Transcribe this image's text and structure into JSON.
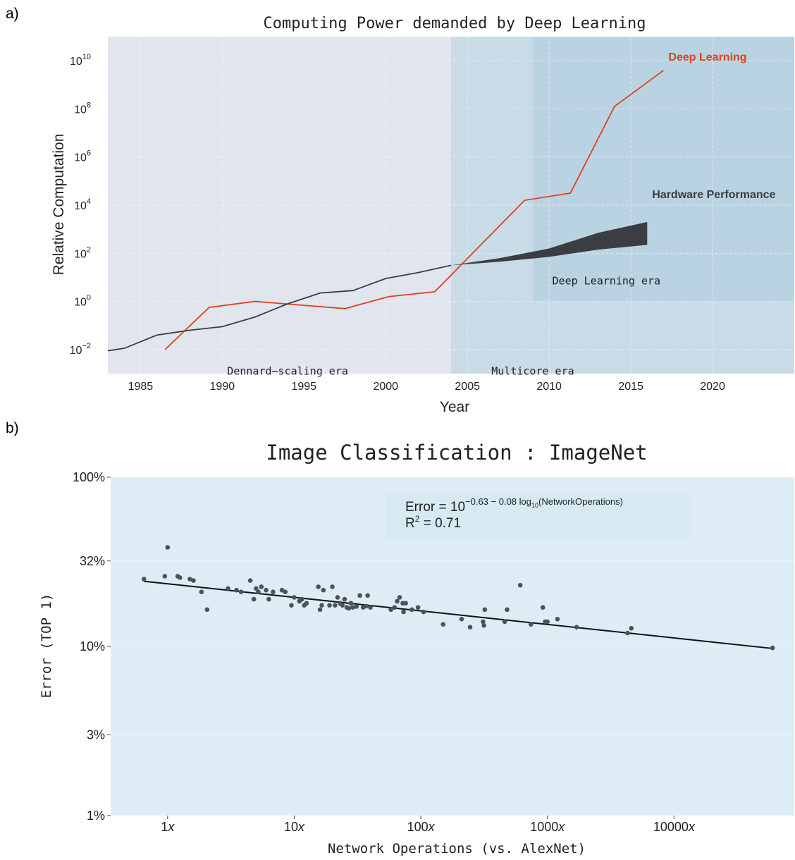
{
  "panel_labels": [
    "a)",
    "b)"
  ],
  "chart_data": [
    {
      "type": "line",
      "title": "Computing Power demanded by Deep Learning",
      "xlabel": "Year",
      "ylabel": "Relative Computation",
      "xlim": [
        1983,
        2025
      ],
      "ylim_log10": [
        -3,
        11
      ],
      "y_scale": "log",
      "x_ticks": [
        1985,
        1990,
        1995,
        2000,
        2005,
        2010,
        2015,
        2020
      ],
      "y_ticks": [
        {
          "exp": -2,
          "label": "10",
          "sup": "−2"
        },
        {
          "exp": 0,
          "label": "10",
          "sup": "0"
        },
        {
          "exp": 2,
          "label": "10",
          "sup": "2"
        },
        {
          "exp": 4,
          "label": "10",
          "sup": "4"
        },
        {
          "exp": 6,
          "label": "10",
          "sup": "6"
        },
        {
          "exp": 8,
          "label": "10",
          "sup": "8"
        },
        {
          "exp": 10,
          "label": "10",
          "sup": "10"
        }
      ],
      "grid": true,
      "regions": [
        {
          "label": "Dennard−scaling era",
          "x": [
            1983,
            2004
          ],
          "y_log10": [
            -3,
            11
          ],
          "color": "#e1e5ee"
        },
        {
          "label": "Multicore era",
          "x": [
            2004,
            2025
          ],
          "y_log10": [
            -3,
            11
          ],
          "color": "#c9dbe7"
        },
        {
          "label": "Deep Learning era",
          "x": [
            2009,
            2025
          ],
          "y_log10": [
            0,
            11
          ],
          "color": "#b9d3e2"
        }
      ],
      "series": [
        {
          "name": "Deep Learning",
          "color": "#e2401d",
          "x": [
            1986.5,
            1989.2,
            1992.0,
            1997.5,
            2000.2,
            2003.0,
            2008.5,
            2011.3,
            2014.0,
            2017.0
          ],
          "y_log10": [
            -2.0,
            -0.25,
            0.0,
            -0.3,
            0.2,
            0.4,
            4.2,
            4.5,
            8.1,
            9.6
          ]
        },
        {
          "name": "Hardware Performance",
          "color": "#3a3d42",
          "x": [
            1983,
            1984,
            1986,
            1988,
            1990,
            1992,
            1994,
            1996,
            1998,
            2000,
            2002,
            2004
          ],
          "y_log10": [
            -2.05,
            -1.95,
            -1.4,
            -1.2,
            -1.05,
            -0.65,
            -0.1,
            0.35,
            0.45,
            0.95,
            1.2,
            1.5
          ]
        }
      ],
      "bands": [
        {
          "name": "Hardware Performance",
          "color": "#3a3d42",
          "x": [
            2004,
            2007,
            2010,
            2013,
            2016
          ],
          "upper_log10": [
            1.5,
            1.8,
            2.2,
            2.85,
            3.3
          ],
          "lower_log10": [
            1.5,
            1.65,
            1.85,
            2.15,
            2.35
          ]
        }
      ]
    },
    {
      "type": "scatter",
      "title": "Image Classification : ImageNet",
      "xlabel": "Network Operations (vs. AlexNet)",
      "ylabel": "Error (TOP 1)",
      "x_scale": "log",
      "y_scale": "log",
      "xlim_log10": [
        -0.45,
        4.95
      ],
      "ylim_percent": [
        1,
        100
      ],
      "x_ticks": [
        {
          "value": 1,
          "label": "1x"
        },
        {
          "value": 10,
          "label": "10x"
        },
        {
          "value": 100,
          "label": "100x"
        },
        {
          "value": 1000,
          "label": "1000x"
        },
        {
          "value": 10000,
          "label": "10000x"
        }
      ],
      "y_ticks": [
        {
          "value": 1,
          "label": "1%"
        },
        {
          "value": 3,
          "label": "3%"
        },
        {
          "value": 10,
          "label": "10%"
        },
        {
          "value": 32,
          "label": "32%"
        },
        {
          "value": 100,
          "label": "100%"
        }
      ],
      "annotation": {
        "line1_prefix": "Error = 10",
        "line1_exponent": "−0.63 − 0.08 log",
        "line1_sub": "10",
        "line1_suffix": "(NetworkOperations)",
        "line2_prefix": "R",
        "line2_sup": "2",
        "line2_suffix": " = 0.71"
      },
      "fit": {
        "intercept": -0.63,
        "slope": -0.08,
        "x_range": [
          0.65,
          60000
        ]
      },
      "point_color": "#4a5358",
      "points": [
        [
          0.65,
          25.0
        ],
        [
          0.95,
          26.0
        ],
        [
          1.0,
          38.5
        ],
        [
          1.2,
          26.0
        ],
        [
          1.25,
          25.5
        ],
        [
          1.5,
          25.0
        ],
        [
          1.6,
          24.5
        ],
        [
          1.85,
          21.0
        ],
        [
          2.05,
          16.5
        ],
        [
          3.0,
          22.0
        ],
        [
          3.5,
          21.5
        ],
        [
          3.8,
          21.0
        ],
        [
          4.5,
          24.5
        ],
        [
          4.8,
          19.0
        ],
        [
          5.0,
          22.0
        ],
        [
          5.2,
          21.0
        ],
        [
          5.5,
          22.5
        ],
        [
          6.0,
          21.5
        ],
        [
          6.3,
          19.0
        ],
        [
          6.8,
          21.0
        ],
        [
          8.0,
          21.5
        ],
        [
          8.5,
          21.0
        ],
        [
          9.5,
          17.5
        ],
        [
          10.0,
          19.5
        ],
        [
          11.0,
          18.5
        ],
        [
          11.5,
          19.0
        ],
        [
          12.0,
          17.5
        ],
        [
          12.5,
          18.0
        ],
        [
          15.5,
          22.5
        ],
        [
          16.0,
          16.5
        ],
        [
          16.5,
          17.5
        ],
        [
          17.0,
          21.5
        ],
        [
          19.0,
          17.5
        ],
        [
          20.0,
          22.5
        ],
        [
          21.0,
          17.5
        ],
        [
          22.0,
          19.5
        ],
        [
          23.0,
          18.0
        ],
        [
          24.0,
          17.5
        ],
        [
          25.0,
          19.0
        ],
        [
          26.0,
          17.0
        ],
        [
          27.0,
          16.8
        ],
        [
          28.0,
          18.0
        ],
        [
          29.0,
          17.0
        ],
        [
          31.0,
          17.2
        ],
        [
          33.0,
          20.0
        ],
        [
          35.0,
          17.0
        ],
        [
          37.0,
          17.3
        ],
        [
          38.0,
          20.0
        ],
        [
          40.0,
          17.0
        ],
        [
          58.0,
          16.5
        ],
        [
          62.0,
          17.0
        ],
        [
          65.0,
          18.5
        ],
        [
          68.0,
          19.5
        ],
        [
          72.0,
          18.0
        ],
        [
          73.0,
          16.0
        ],
        [
          76.0,
          18.0
        ],
        [
          85.0,
          16.5
        ],
        [
          95.0,
          17.0
        ],
        [
          105.0,
          16.0
        ],
        [
          150.0,
          13.5
        ],
        [
          210.0,
          14.5
        ],
        [
          245.0,
          13.0
        ],
        [
          310.0,
          14.0
        ],
        [
          315.0,
          13.3
        ],
        [
          320.0,
          16.5
        ],
        [
          460.0,
          14.0
        ],
        [
          480.0,
          16.5
        ],
        [
          610.0,
          23.0
        ],
        [
          740.0,
          13.5
        ],
        [
          920.0,
          17.0
        ],
        [
          960.0,
          14.0
        ],
        [
          1000.0,
          14.0
        ],
        [
          1200.0,
          14.5
        ],
        [
          1700.0,
          13.0
        ],
        [
          4300.0,
          12.0
        ],
        [
          4600.0,
          12.8
        ],
        [
          60000.0,
          9.8
        ]
      ]
    }
  ]
}
